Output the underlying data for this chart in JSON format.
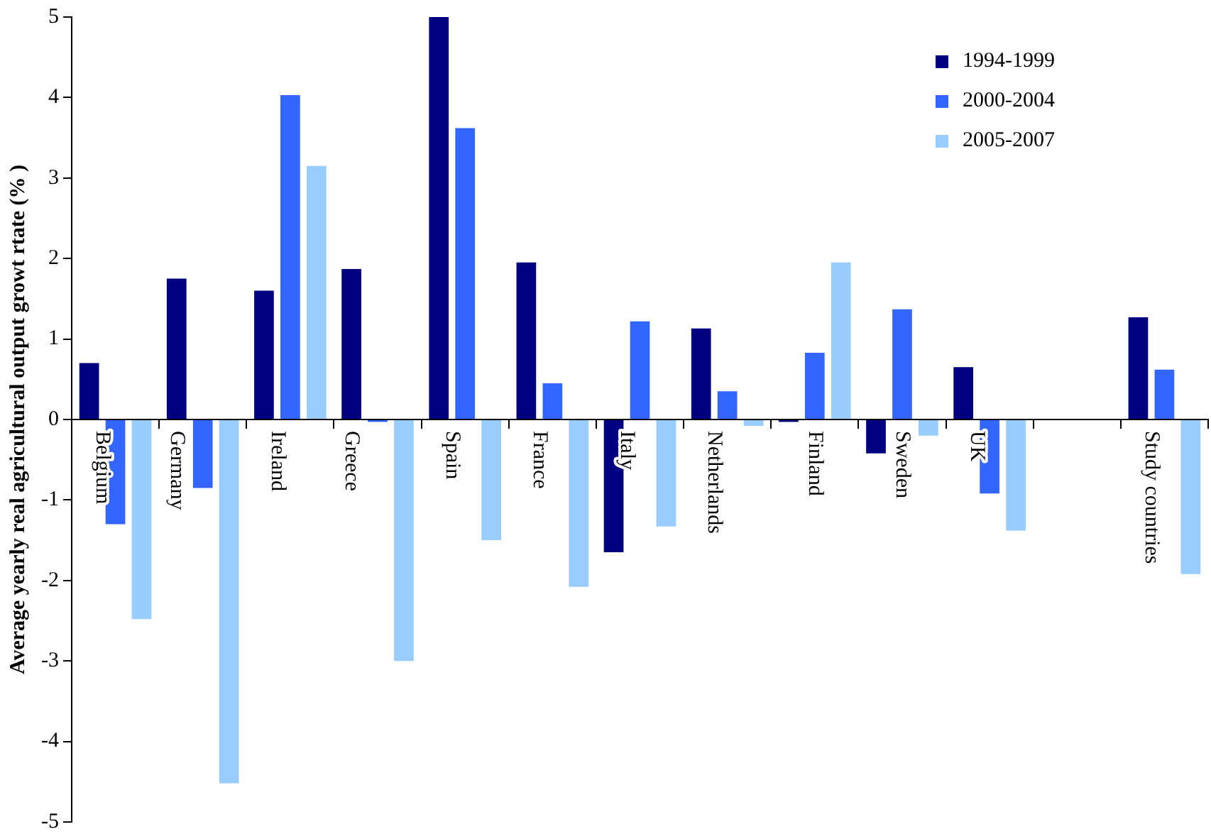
{
  "chart_data": {
    "type": "bar",
    "ylabel": "Average yearly real agricultural output growt rtate (% )",
    "categories": [
      "Belgium",
      "Germany",
      "Ireland",
      "Greece",
      "Spain",
      "France",
      "Italy",
      "Netherlands",
      "Finland",
      "Sweden",
      "UK",
      null,
      "Study countries"
    ],
    "series": [
      {
        "name": "1994-1999",
        "color": "#000080",
        "values": [
          0.7,
          1.75,
          1.6,
          1.87,
          5,
          1.95,
          -1.65,
          1.13,
          -0.03,
          -0.42,
          0.65,
          null,
          1.27
        ]
      },
      {
        "name": "2000-2004",
        "color": "#3366ff",
        "values": [
          -1.3,
          -0.85,
          4.03,
          -0.03,
          3.62,
          0.45,
          1.22,
          0.35,
          0.83,
          1.37,
          -0.92,
          null,
          0.62
        ]
      },
      {
        "name": "2005-2007",
        "color": "#99ccff",
        "values": [
          -2.48,
          -4.52,
          3.15,
          -3.0,
          -1.5,
          -2.08,
          -1.33,
          -0.08,
          1.95,
          -0.2,
          -1.38,
          null,
          -1.92
        ]
      }
    ],
    "ylim": [
      -5,
      5
    ],
    "yticks": [
      -5,
      -4,
      -3,
      -2,
      -1,
      0,
      1,
      2,
      3,
      4,
      5
    ],
    "grid": false,
    "legend": "top right"
  }
}
